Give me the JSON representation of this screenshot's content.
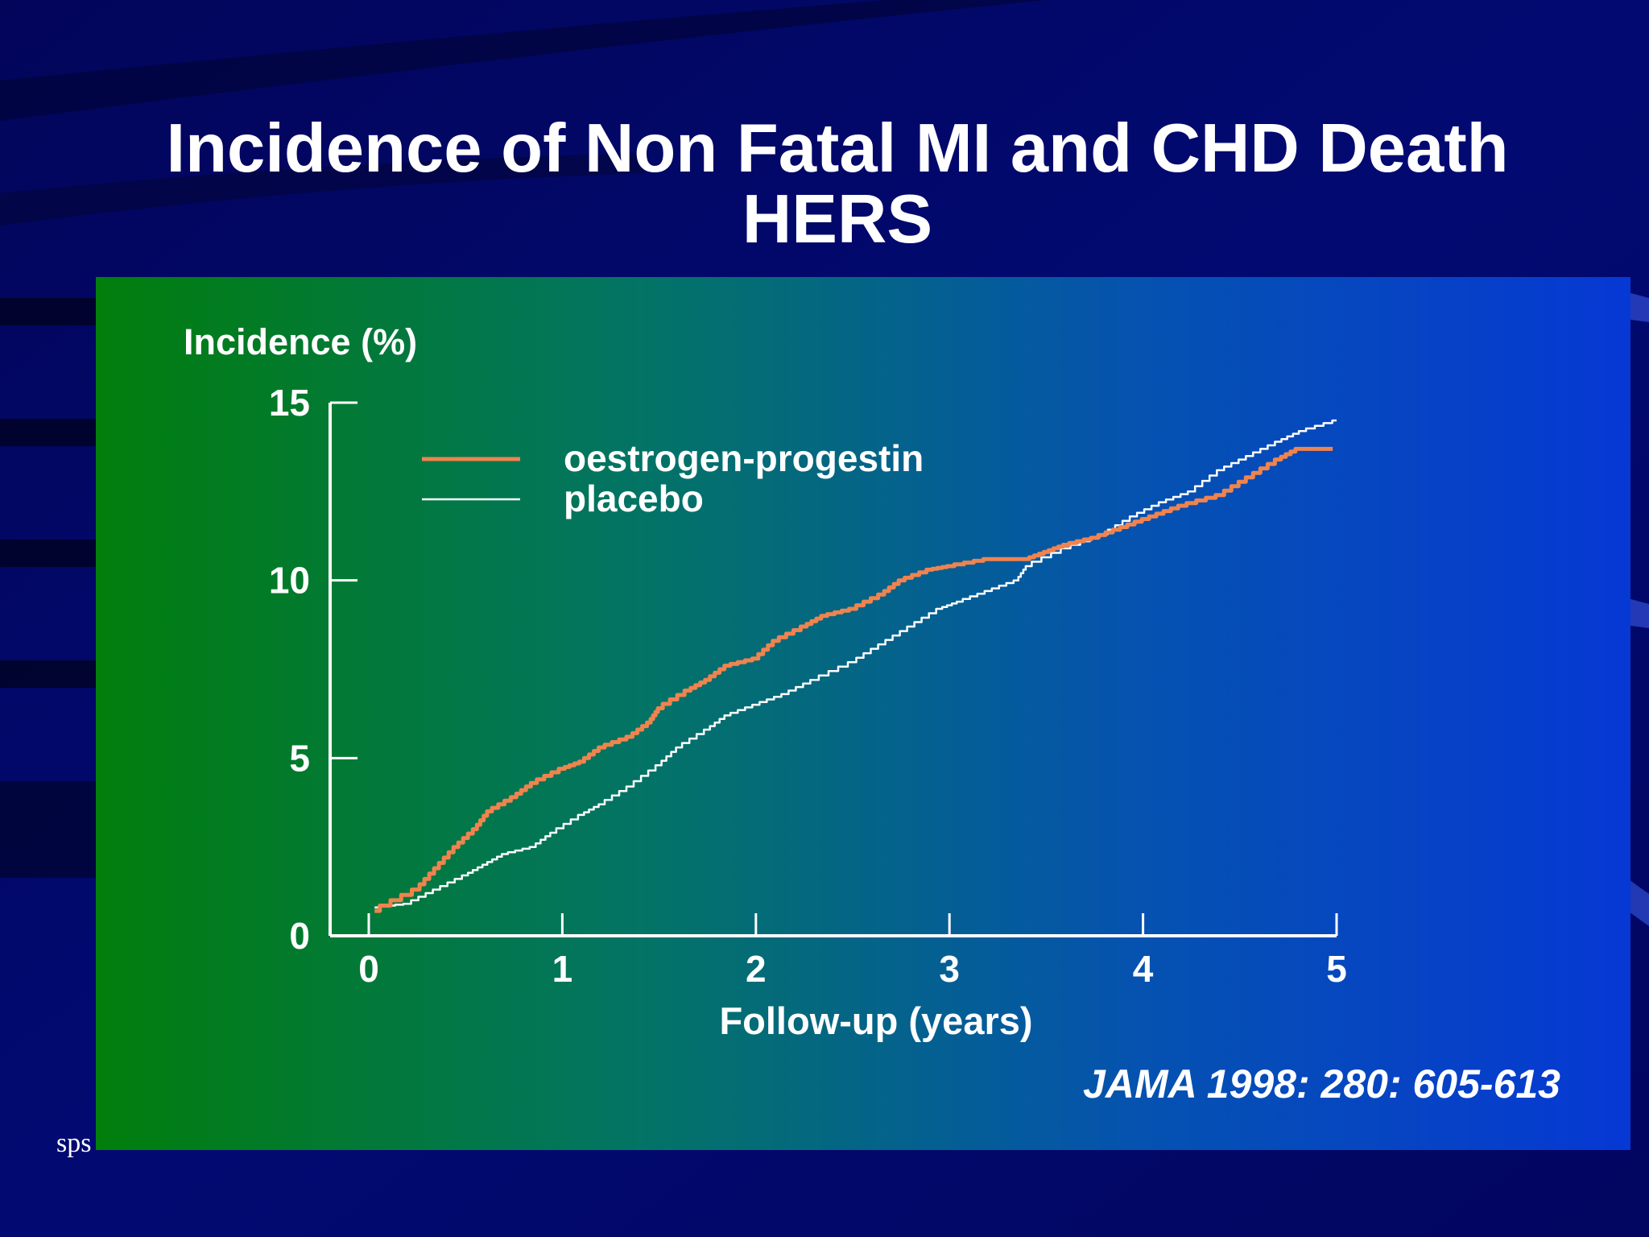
{
  "slide": {
    "title_line1": "Incidence of Non Fatal MI and CHD Death",
    "title_line2": "HERS",
    "citation": "JAMA 1998: 280: 605-613",
    "footer_mark": "sps",
    "colors": {
      "background": "#020868",
      "panel_left": "#017e0b",
      "panel_right": "#0638d4",
      "text": "#ffffff"
    }
  },
  "chart_data": {
    "type": "line",
    "title": "",
    "xlabel": "Follow-up (years)",
    "ylabel": "Incidence (%)",
    "xlim": [
      0,
      5
    ],
    "ylim": [
      0,
      15
    ],
    "xticks": [
      0,
      1,
      2,
      3,
      4,
      5
    ],
    "yticks": [
      0,
      5,
      10,
      15
    ],
    "grid": false,
    "legend_position": "top-left",
    "series": [
      {
        "name": "oestrogen-progestin",
        "color": "#f0834e",
        "x": [
          0.03,
          0.25,
          0.35,
          0.45,
          0.55,
          0.62,
          0.75,
          0.85,
          1.0,
          1.1,
          1.2,
          1.35,
          1.45,
          1.5,
          1.65,
          1.75,
          1.85,
          2.0,
          2.1,
          2.25,
          2.35,
          2.5,
          2.65,
          2.75,
          2.9,
          3.0,
          3.2,
          3.4,
          3.5,
          3.6,
          3.75,
          3.9,
          4.05,
          4.2,
          4.4,
          4.55,
          4.7,
          4.8,
          4.98
        ],
        "y": [
          0.7,
          1.3,
          1.9,
          2.5,
          3.0,
          3.5,
          3.9,
          4.3,
          4.7,
          4.9,
          5.3,
          5.6,
          6.0,
          6.4,
          6.9,
          7.2,
          7.6,
          7.8,
          8.3,
          8.7,
          9.0,
          9.2,
          9.6,
          10.0,
          10.3,
          10.4,
          10.6,
          10.6,
          10.8,
          11.0,
          11.2,
          11.5,
          11.8,
          12.1,
          12.4,
          12.9,
          13.4,
          13.7,
          13.7
        ]
      },
      {
        "name": "placebo",
        "color": "#ffffff",
        "x": [
          0.03,
          0.2,
          0.35,
          0.5,
          0.6,
          0.7,
          0.85,
          0.95,
          1.1,
          1.2,
          1.35,
          1.5,
          1.6,
          1.75,
          1.85,
          2.0,
          2.15,
          2.3,
          2.5,
          2.65,
          2.8,
          2.95,
          3.05,
          3.2,
          3.35,
          3.4,
          3.6,
          3.8,
          3.95,
          4.1,
          4.25,
          4.4,
          4.55,
          4.7,
          4.82,
          5.0
        ],
        "y": [
          0.8,
          0.9,
          1.3,
          1.7,
          2.0,
          2.3,
          2.5,
          2.9,
          3.4,
          3.7,
          4.2,
          4.8,
          5.3,
          5.8,
          6.2,
          6.5,
          6.8,
          7.2,
          7.7,
          8.2,
          8.7,
          9.2,
          9.4,
          9.7,
          10.0,
          10.4,
          10.9,
          11.3,
          11.8,
          12.2,
          12.5,
          13.1,
          13.5,
          13.9,
          14.2,
          14.5
        ]
      }
    ]
  }
}
